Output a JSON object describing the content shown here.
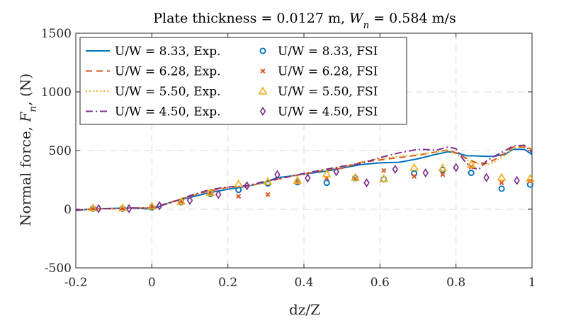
{
  "chart_data": {
    "type": "line",
    "title": "Plate thickness = 0.0127 m, W_n = 0.584 m/s",
    "title_parts": {
      "prefix": "Plate thickness = 0.0127 m, ",
      "var": "W",
      "sub": "n",
      "suffix": " = 0.584 m/s"
    },
    "xlabel": "dz/Z",
    "ylabel": "Normal force, F_n, (N)",
    "ylabel_parts": {
      "prefix": "Normal force, ",
      "var": "F",
      "sub": "n",
      "suffix": ", (N)"
    },
    "xlim": [
      -0.2,
      1.0
    ],
    "ylim": [
      -500,
      1500
    ],
    "xticks": [
      -0.2,
      0,
      0.2,
      0.4,
      0.6,
      0.8,
      1.0
    ],
    "xtick_labels": [
      "-0.2",
      "0",
      "0.2",
      "0.4",
      "0.6",
      "0.8",
      "1"
    ],
    "yticks": [
      -500,
      0,
      500,
      1000,
      1500
    ],
    "ytick_labels": [
      "-500",
      "0",
      "500",
      "1000",
      "1500"
    ],
    "grid": true,
    "legend_position": "top-left",
    "series": [
      {
        "name": "U/W = 8.33, Exp.",
        "kind": "line",
        "style": "solid",
        "color": "#0072BD",
        "x": [
          -0.2,
          -0.15,
          -0.1,
          -0.05,
          0,
          0.05,
          0.1,
          0.15,
          0.2,
          0.25,
          0.3,
          0.33,
          0.36,
          0.4,
          0.45,
          0.5,
          0.55,
          0.6,
          0.65,
          0.7,
          0.75,
          0.78,
          0.8,
          0.83,
          0.85,
          0.88,
          0.9,
          0.93,
          0.95,
          0.98,
          1.0
        ],
        "y": [
          -10,
          5,
          8,
          10,
          0,
          60,
          100,
          140,
          170,
          195,
          230,
          270,
          280,
          300,
          320,
          350,
          380,
          395,
          400,
          430,
          470,
          490,
          480,
          455,
          455,
          450,
          450,
          470,
          510,
          510,
          465
        ]
      },
      {
        "name": "U/W = 6.28, Exp.",
        "kind": "line",
        "style": "dashed",
        "color": "#D95319",
        "x": [
          -0.2,
          -0.15,
          -0.1,
          -0.05,
          0,
          0.05,
          0.1,
          0.15,
          0.2,
          0.25,
          0.3,
          0.35,
          0.4,
          0.45,
          0.5,
          0.55,
          0.6,
          0.65,
          0.7,
          0.75,
          0.78,
          0.8,
          0.83,
          0.85,
          0.88,
          0.9,
          0.93,
          0.95,
          0.98,
          1.0
        ],
        "y": [
          -10,
          5,
          5,
          10,
          10,
          60,
          110,
          155,
          185,
          195,
          230,
          270,
          300,
          330,
          350,
          400,
          420,
          440,
          460,
          490,
          505,
          480,
          430,
          400,
          390,
          420,
          480,
          530,
          530,
          510
        ]
      },
      {
        "name": "U/W = 5.50, Exp.",
        "kind": "line",
        "style": "dotted",
        "color": "#EDB120",
        "x": [
          -0.2,
          -0.15,
          -0.1,
          -0.05,
          0,
          0.05,
          0.1,
          0.15,
          0.2,
          0.25,
          0.3,
          0.35,
          0.4,
          0.45,
          0.5,
          0.55,
          0.6,
          0.65,
          0.7,
          0.75,
          0.78,
          0.8,
          0.83,
          0.85,
          0.88,
          0.9,
          0.93,
          0.95,
          0.98,
          1.0
        ],
        "y": [
          -10,
          5,
          5,
          10,
          10,
          55,
          110,
          160,
          185,
          195,
          235,
          270,
          300,
          335,
          360,
          400,
          430,
          450,
          465,
          490,
          500,
          470,
          420,
          390,
          380,
          400,
          460,
          520,
          535,
          520
        ]
      },
      {
        "name": "U/W = 4.50, Exp.",
        "kind": "line",
        "style": "dashdot",
        "color": "#7E2F8E",
        "x": [
          -0.2,
          -0.15,
          -0.1,
          -0.05,
          0,
          0.05,
          0.1,
          0.15,
          0.2,
          0.25,
          0.3,
          0.35,
          0.4,
          0.45,
          0.5,
          0.55,
          0.6,
          0.65,
          0.7,
          0.75,
          0.78,
          0.8,
          0.82,
          0.84,
          0.86,
          0.88,
          0.9,
          0.93,
          0.95,
          0.98,
          1.0
        ],
        "y": [
          -10,
          5,
          5,
          10,
          10,
          55,
          115,
          165,
          190,
          200,
          240,
          270,
          305,
          335,
          365,
          390,
          440,
          480,
          510,
          505,
          530,
          515,
          420,
          355,
          340,
          410,
          450,
          500,
          540,
          545,
          480
        ]
      },
      {
        "name": "U/W = 8.33, FSI",
        "kind": "marker",
        "marker": "circle",
        "color": "#0072BD",
        "x": [
          -0.155,
          -0.077,
          0,
          0.077,
          0.154,
          0.228,
          0.305,
          0.383,
          0.46,
          0.535,
          0.61,
          0.69,
          0.765,
          0.84,
          0.92,
          0.995
        ],
        "y": [
          5,
          5,
          15,
          60,
          130,
          165,
          220,
          230,
          225,
          265,
          255,
          305,
          335,
          310,
          175,
          210
        ]
      },
      {
        "name": "U/W = 6.28, FSI",
        "kind": "marker",
        "marker": "x",
        "color": "#D95319",
        "x": [
          -0.155,
          -0.077,
          0,
          0.077,
          0.154,
          0.228,
          0.305,
          0.383,
          0.46,
          0.535,
          0.61,
          0.69,
          0.765,
          0.84,
          0.92,
          0.995
        ],
        "y": [
          5,
          5,
          20,
          65,
          135,
          110,
          125,
          230,
          265,
          260,
          330,
          280,
          295,
          360,
          225,
          240
        ]
      },
      {
        "name": "U/W = 5.50, FSI",
        "kind": "marker",
        "marker": "triangle",
        "color": "#EDB120",
        "x": [
          -0.155,
          -0.077,
          0,
          0.077,
          0.154,
          0.228,
          0.305,
          0.383,
          0.46,
          0.535,
          0.61,
          0.69,
          0.765,
          0.84,
          0.92,
          0.995
        ],
        "y": [
          10,
          10,
          25,
          65,
          140,
          215,
          235,
          245,
          300,
          270,
          260,
          355,
          350,
          380,
          270,
          260
        ]
      },
      {
        "name": "U/W = 4.50, FSI",
        "kind": "marker",
        "marker": "diamond",
        "color": "#7E2F8E",
        "x": [
          -0.14,
          -0.06,
          0.02,
          0.1,
          0.175,
          0.25,
          0.33,
          0.41,
          0.485,
          0.565,
          0.64,
          0.72,
          0.8,
          0.88,
          0.96
        ],
        "y": [
          5,
          5,
          30,
          75,
          125,
          200,
          295,
          265,
          320,
          225,
          340,
          310,
          355,
          270,
          245
        ]
      }
    ]
  }
}
